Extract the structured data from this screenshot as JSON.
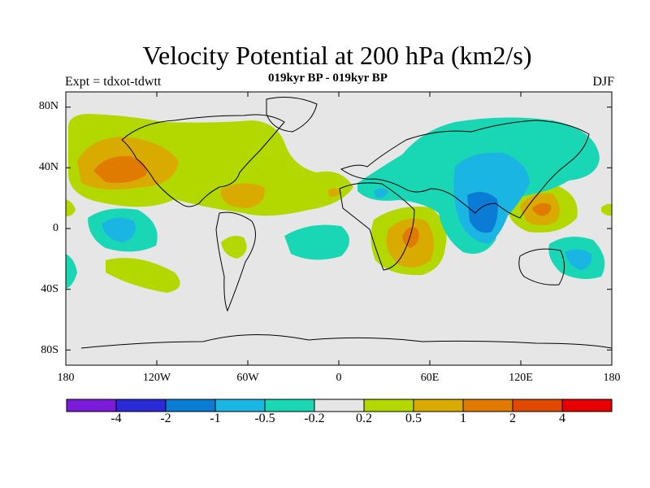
{
  "title": "Velocity Potential at 200 hPa (km2/s)",
  "subtitle": "019kyr BP - 019kyr BP",
  "left_label": "Expt = tdxot-tdwtt",
  "right_label": "DJF",
  "axes": {
    "lat_ticks": [
      "80N",
      "40N",
      "0",
      "40S",
      "80S"
    ],
    "lon_ticks": [
      "180",
      "120W",
      "60W",
      "0",
      "60E",
      "120E",
      "180"
    ]
  },
  "colorbar": {
    "colors": [
      "#7b1ad9",
      "#2a2ad6",
      "#0a7cd6",
      "#1ab5e3",
      "#19d6b5",
      "#e6e6e6",
      "#b2d800",
      "#d9aa00",
      "#e07b00",
      "#e04a00",
      "#e60000"
    ],
    "labels": [
      "-4",
      "-2",
      "-1",
      "-0.5",
      "-0.2",
      "0.2",
      "0.5",
      "1",
      "2",
      "4"
    ]
  },
  "map": {
    "background_color": "#e6e6e6",
    "projection": "cylindrical-equidistant",
    "lon_range": [
      -180,
      180
    ],
    "lat_range": [
      -90,
      90
    ]
  }
}
